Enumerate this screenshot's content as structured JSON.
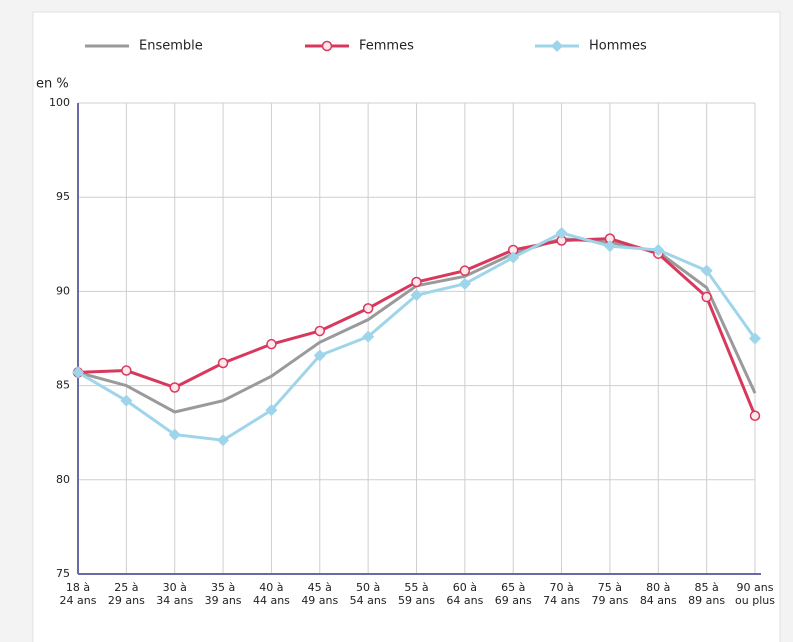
{
  "chart_data": {
    "type": "line",
    "y_label": "en %",
    "categories": [
      [
        "18 à",
        "24 ans"
      ],
      [
        "25 à",
        "29 ans"
      ],
      [
        "30 à",
        "34 ans"
      ],
      [
        "35 à",
        "39 ans"
      ],
      [
        "40 à",
        "44 ans"
      ],
      [
        "45 à",
        "49 ans"
      ],
      [
        "50 à",
        "54 ans"
      ],
      [
        "55 à",
        "59 ans"
      ],
      [
        "60 à",
        "64 ans"
      ],
      [
        "65 à",
        "69 ans"
      ],
      [
        "70 à",
        "74 ans"
      ],
      [
        "75 à",
        "79 ans"
      ],
      [
        "80 à",
        "84 ans"
      ],
      [
        "85 à",
        "89 ans"
      ],
      [
        "90 ans",
        "ou plus"
      ]
    ],
    "series": [
      {
        "name": "Ensemble",
        "color": "#9a9a9a",
        "marker": "none",
        "values": [
          85.7,
          85.0,
          83.6,
          84.2,
          85.5,
          87.3,
          88.5,
          90.3,
          90.8,
          92.0,
          92.8,
          92.6,
          92.1,
          90.2,
          84.6
        ]
      },
      {
        "name": "Femmes",
        "color": "#d9385e",
        "marker": "circle",
        "values": [
          85.7,
          85.8,
          84.9,
          86.2,
          87.2,
          87.9,
          89.1,
          90.5,
          91.1,
          92.2,
          92.7,
          92.8,
          92.0,
          89.7,
          83.4
        ]
      },
      {
        "name": "Hommes",
        "color": "#9fd5ea",
        "marker": "diamond",
        "values": [
          85.7,
          84.2,
          82.4,
          82.1,
          83.7,
          86.6,
          87.6,
          89.8,
          90.4,
          91.8,
          93.1,
          92.4,
          92.2,
          91.1,
          87.5
        ]
      }
    ],
    "ylim": [
      75,
      100
    ],
    "yticks": [
      75,
      80,
      85,
      90,
      95,
      100
    ],
    "grid": true,
    "legend": "top"
  }
}
